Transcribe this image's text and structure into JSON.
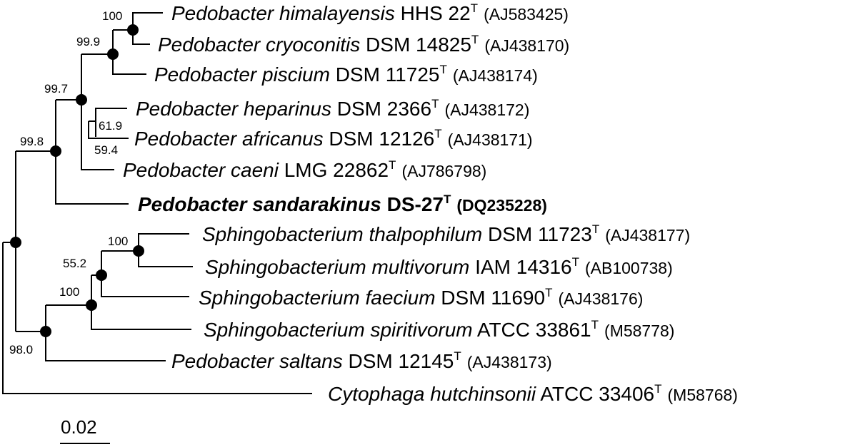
{
  "taxa": [
    {
      "genus_species": "Pedobacter himalayensis",
      "strain": "HHS 22",
      "type_mark": "T",
      "accession": "(AJ583425)"
    },
    {
      "genus_species": "Pedobacter cryoconitis",
      "strain": "DSM 14825",
      "type_mark": "T",
      "accession": "(AJ438170)"
    },
    {
      "genus_species": "Pedobacter piscium",
      "strain": "DSM 11725",
      "type_mark": "T",
      "accession": "(AJ438174)"
    },
    {
      "genus_species": "Pedobacter heparinus",
      "strain": "DSM 2366",
      "type_mark": "T",
      "accession": "(AJ438172)"
    },
    {
      "genus_species": "Pedobacter africanus",
      "strain": "DSM 12126",
      "type_mark": "T",
      "accession": "(AJ438171)"
    },
    {
      "genus_species": "Pedobacter caeni",
      "strain": "LMG 22862",
      "type_mark": "T",
      "accession": "(AJ786798)"
    },
    {
      "genus_species": "Pedobacter sandarakinus",
      "strain": "DS-27",
      "type_mark": "T",
      "accession": "(DQ235228)"
    },
    {
      "genus_species": "Sphingobacterium thalpophilum",
      "strain": "DSM 11723",
      "type_mark": "T",
      "accession": "(AJ438177)"
    },
    {
      "genus_species": "Sphingobacterium multivorum",
      "strain": "IAM 14316",
      "type_mark": "T",
      "accession": "(AB100738)"
    },
    {
      "genus_species": "Sphingobacterium faecium",
      "strain": "DSM 11690",
      "type_mark": "T",
      "accession": "(AJ438176)"
    },
    {
      "genus_species": "Sphingobacterium spiritivorum",
      "strain": "ATCC 33861",
      "type_mark": "T",
      "accession": "(M58778)"
    },
    {
      "genus_species": "Pedobacter saltans",
      "strain": "DSM 12145",
      "type_mark": "T",
      "accession": "(AJ438173)"
    },
    {
      "genus_species": "Cytophaga hutchinsonii",
      "strain": "ATCC 33406",
      "type_mark": "T",
      "accession": "(M58768)"
    }
  ],
  "bootstrap": {
    "himalayensis_cryoconitis": "100",
    "with_piscium": "99.9",
    "pedobacter_core": "99.7",
    "heparinus_africanus": "61.9",
    "heparinus_africanus_lower": "59.4",
    "with_sandarakinus": "99.8",
    "thalpophilum_multivorum": "100",
    "with_faecium": "55.2",
    "with_spiritivorum": "100",
    "with_saltans": "98.0"
  },
  "scale_bar": {
    "label": "0.02"
  }
}
